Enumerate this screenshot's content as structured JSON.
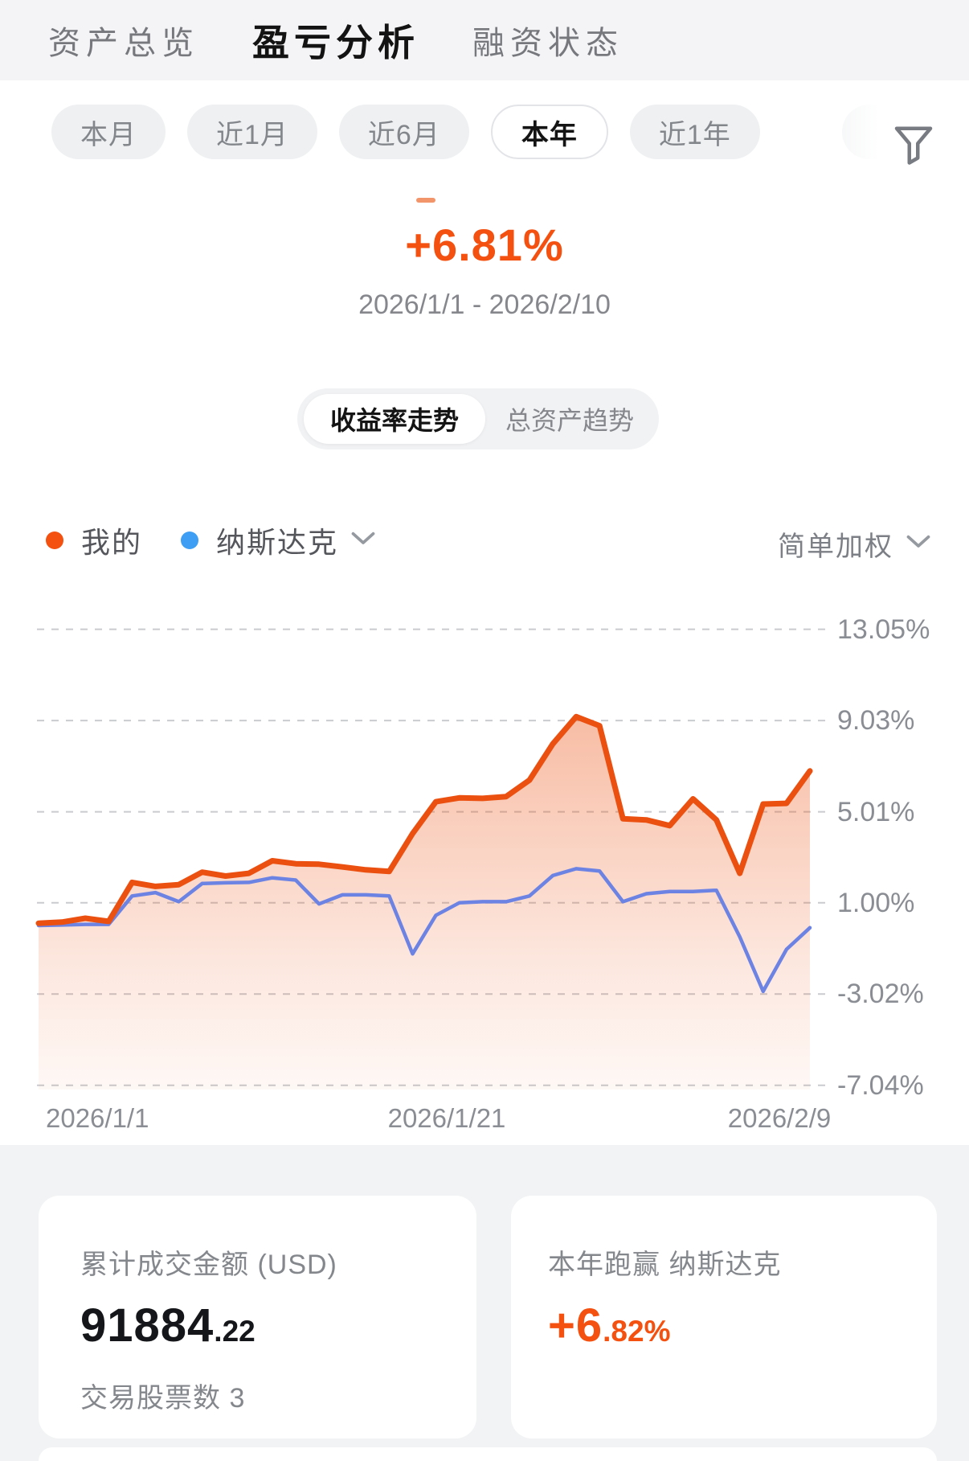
{
  "header": {
    "tabs": [
      {
        "label": "资产总览",
        "active": false
      },
      {
        "label": "盈亏分析",
        "active": true
      },
      {
        "label": "融资状态",
        "active": false
      }
    ]
  },
  "periods": {
    "options": [
      {
        "label": "本月",
        "active": false
      },
      {
        "label": "近1月",
        "active": false
      },
      {
        "label": "近6月",
        "active": false
      },
      {
        "label": "本年",
        "active": true
      },
      {
        "label": "近1年",
        "active": false
      }
    ]
  },
  "summary": {
    "change_percent": "+6.81%",
    "date_range": "2026/1/1 - 2026/2/10"
  },
  "view_toggle": {
    "options": [
      {
        "label": "收益率走势",
        "active": true
      },
      {
        "label": "总资产趋势",
        "active": false
      }
    ]
  },
  "legend": {
    "items": [
      {
        "label": "我的",
        "color": "#f4500f",
        "has_dropdown": false
      },
      {
        "label": "纳斯达克",
        "color": "#3d9ef3",
        "has_dropdown": true
      }
    ],
    "weighting_label": "简单加权"
  },
  "chart_data": {
    "type": "line",
    "title": "收益率走势",
    "x_ticks": [
      "2026/1/1",
      "2026/1/21",
      "2026/2/9"
    ],
    "y_tick_values": [
      13.05,
      9.03,
      5.01,
      1.0,
      -3.02,
      -7.04
    ],
    "y_tick_labels": [
      "13.05%",
      "9.03%",
      "5.01%",
      "1.00%",
      "-3.02%",
      "-7.04%"
    ],
    "ylim": [
      -7.04,
      13.05
    ],
    "grid": "dashed-horizontal",
    "legend_position": "top-left",
    "series": [
      {
        "name": "我的",
        "color": "#eb5010",
        "area_fill": "orange-gradient",
        "values": [
          0.1,
          0.15,
          0.32,
          0.18,
          1.9,
          1.72,
          1.8,
          2.35,
          2.18,
          2.3,
          2.85,
          2.72,
          2.7,
          2.58,
          2.45,
          2.38,
          4.05,
          5.45,
          5.62,
          5.6,
          5.68,
          6.4,
          8.0,
          9.2,
          8.8,
          4.7,
          4.65,
          4.4,
          5.58,
          4.65,
          2.3,
          5.35,
          5.38,
          6.81
        ]
      },
      {
        "name": "纳斯达克",
        "color": "#6d83e4",
        "area_fill": "none",
        "values": [
          0.0,
          0.02,
          0.05,
          0.05,
          1.3,
          1.45,
          1.05,
          1.85,
          1.88,
          1.9,
          2.1,
          2.0,
          0.95,
          1.35,
          1.35,
          1.3,
          -1.25,
          0.45,
          1.0,
          1.05,
          1.05,
          1.3,
          2.2,
          2.5,
          2.4,
          1.05,
          1.4,
          1.5,
          1.5,
          1.55,
          -0.5,
          -2.9,
          -1.05,
          -0.1
        ]
      }
    ]
  },
  "cards": [
    {
      "title": "累计成交金额 (USD)",
      "value_main": "91884",
      "value_decimal": ".22",
      "subtitle": "交易股票数 3"
    },
    {
      "title": "本年跑赢 纳斯达克",
      "value_main": "+6",
      "value_decimal": ".82%",
      "subtitle": ""
    }
  ],
  "icons": {
    "filter": "funnel-icon",
    "dropdown": "chevron-down-icon"
  },
  "colors": {
    "accent_orange": "#f4500f",
    "benchmark_dot_blue": "#3d9ef3",
    "line_blue": "#6d83e4",
    "grid_line": "#c9cbcf"
  }
}
